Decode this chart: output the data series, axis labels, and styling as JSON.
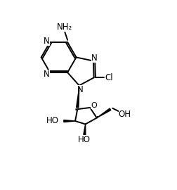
{
  "bg_color": "#ffffff",
  "line_color": "#000000",
  "line_width": 1.4,
  "font_size": 8.5,
  "figsize": [
    2.52,
    2.7
  ],
  "dpi": 100,
  "xlim": [
    0,
    10
  ],
  "ylim": [
    0,
    10.7
  ]
}
